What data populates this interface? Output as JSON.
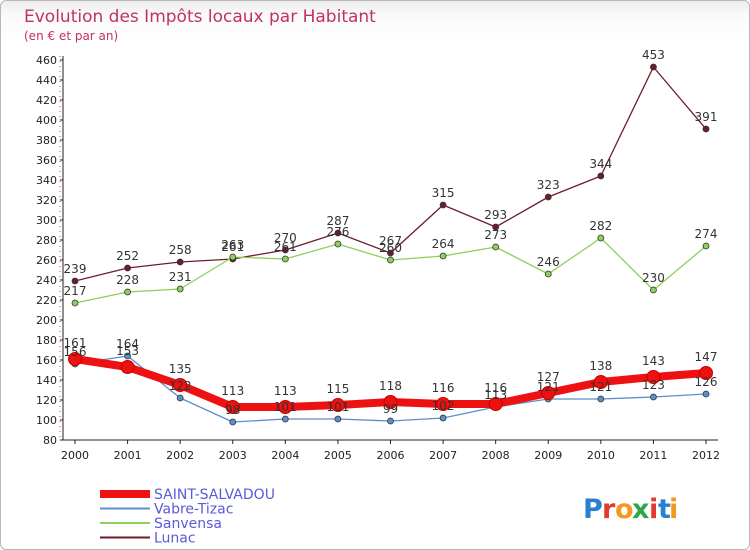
{
  "chart_data": {
    "type": "line",
    "title": "Evolution des Impôts locaux par Habitant",
    "subtitle": "(en € et par an)",
    "x": [
      "2000",
      "2001",
      "2002",
      "2003",
      "2004",
      "2005",
      "2006",
      "2007",
      "2008",
      "2009",
      "2010",
      "2011",
      "2012"
    ],
    "ylim": [
      80,
      460
    ],
    "yticks": [
      80,
      100,
      120,
      140,
      160,
      180,
      200,
      220,
      240,
      260,
      280,
      300,
      320,
      340,
      360,
      380,
      400,
      420,
      440,
      460
    ],
    "grid": false,
    "legend_position": "bottom-left",
    "series": [
      {
        "name": "SAINT-SALVADOU",
        "color": "#ee1111",
        "values": [
          161,
          153,
          135,
          113,
          113,
          115,
          118,
          116,
          116,
          127,
          138,
          143,
          147
        ],
        "labels": [
          "161",
          "153",
          "135",
          "113",
          "113",
          "115",
          "118",
          "116",
          "116",
          "127",
          "138",
          "143",
          "147"
        ]
      },
      {
        "name": "Vabre-Tizac",
        "color": "#5b8fc8",
        "values": [
          156,
          164,
          122,
          98,
          101,
          101,
          99,
          102,
          113,
          121,
          121,
          123,
          126
        ],
        "labels": [
          "156",
          "164",
          "122",
          "98",
          "101",
          "101",
          "99",
          "102",
          "113",
          "121",
          "121",
          "123",
          "126"
        ]
      },
      {
        "name": "Sanvensa",
        "color": "#8ed05a",
        "values": [
          217,
          228,
          231,
          263,
          261,
          276,
          260,
          264,
          273,
          246,
          282,
          230,
          274
        ],
        "labels": [
          "217",
          "228",
          "231",
          "263",
          "261",
          "276",
          "260",
          "264",
          "273",
          "246",
          "282",
          "230",
          "274"
        ]
      },
      {
        "name": "Lunac",
        "color": "#6b1e2a",
        "values": [
          239,
          252,
          258,
          261,
          270,
          287,
          267,
          315,
          293,
          323,
          344,
          453,
          391
        ],
        "labels": [
          "239",
          "252",
          "258",
          "261",
          "270",
          "287",
          "267",
          "315",
          "293",
          "323",
          "344",
          "453",
          "391"
        ]
      }
    ]
  },
  "logo": {
    "text": "Proxiti",
    "letters": [
      {
        "ch": "P",
        "color": "#2a7fd0"
      },
      {
        "ch": "r",
        "color": "#e23a2e"
      },
      {
        "ch": "o",
        "color": "#f39a1e"
      },
      {
        "ch": "x",
        "color": "#2aa84a"
      },
      {
        "ch": "i",
        "color": "#e23a2e"
      },
      {
        "ch": "t",
        "color": "#2a7fd0"
      },
      {
        "ch": "i",
        "color": "#f39a1e"
      }
    ]
  }
}
